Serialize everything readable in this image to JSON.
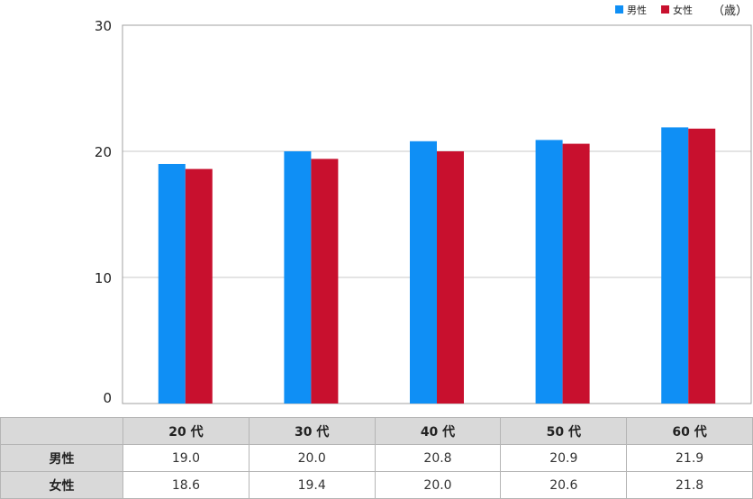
{
  "legend": {
    "male_label": "男性",
    "female_label": "女性",
    "unit": "（歳）"
  },
  "colors": {
    "male": "#0f8ff5",
    "female": "#c8102e",
    "grid": "#c8c8c8",
    "axis": "#a0a0a0"
  },
  "chart_data": {
    "type": "bar",
    "ylim": [
      0,
      30
    ],
    "yticks": [
      0,
      10,
      20,
      30
    ],
    "categories": [
      "20 代",
      "30 代",
      "40 代",
      "50 代",
      "60 代"
    ],
    "series": [
      {
        "name": "男性",
        "values": [
          19.0,
          20.0,
          20.8,
          20.9,
          21.9
        ]
      },
      {
        "name": "女性",
        "values": [
          18.6,
          19.4,
          20.0,
          20.6,
          21.8
        ]
      }
    ],
    "grid": true,
    "legend_position": "top-right"
  },
  "table": {
    "columns": [
      "20 代",
      "30 代",
      "40 代",
      "50 代",
      "60 代"
    ],
    "rows": [
      {
        "label": "男性",
        "values": [
          "19.0",
          "20.0",
          "20.8",
          "20.9",
          "21.9"
        ]
      },
      {
        "label": "女性",
        "values": [
          "18.6",
          "19.4",
          "20.0",
          "20.6",
          "21.8"
        ]
      }
    ]
  }
}
